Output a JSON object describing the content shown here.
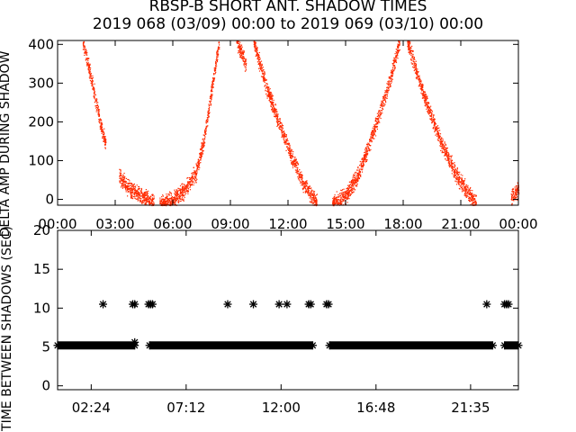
{
  "figure": {
    "title": "RBSP-B SHORT ANT. SHADOW TIMES",
    "subtitle": "2019 068 (03/09) 00:00 to 2019 069 (03/10) 00:00"
  },
  "chart_data": [
    {
      "type": "scatter",
      "name": "top-panel",
      "ylabel": "DELTA AMP DURING SHADOW",
      "xlim": [
        0,
        24
      ],
      "ylim": [
        -15,
        410
      ],
      "xticks": [
        "00:00",
        "03:00",
        "06:00",
        "09:00",
        "12:00",
        "15:00",
        "18:00",
        "21:00",
        "00:00"
      ],
      "xtick_hours": [
        0,
        3,
        6,
        9,
        12,
        15,
        18,
        21,
        24
      ],
      "yticks": [
        0,
        100,
        200,
        300,
        400
      ],
      "color": "#ff2a00",
      "marker": "dot",
      "envelopes": [
        {
          "x0": 1.3,
          "x1": 2.5,
          "x": [
            1.3,
            1.8,
            2.2,
            2.5
          ],
          "y": [
            410,
            300,
            200,
            140
          ]
        },
        {
          "x0": 3.2,
          "x1": 5.0,
          "x": [
            3.2,
            3.6,
            4.2,
            4.7,
            5.0
          ],
          "y": [
            60,
            35,
            15,
            3,
            -10
          ]
        },
        {
          "x0": 5.3,
          "x1": 8.4,
          "x": [
            5.3,
            6.0,
            6.6,
            7.2,
            7.6,
            8.0,
            8.4
          ],
          "y": [
            -10,
            0,
            25,
            70,
            150,
            280,
            410
          ]
        },
        {
          "x0": 9.3,
          "x1": 9.8,
          "x": [
            9.3,
            9.8
          ],
          "y": [
            410,
            350
          ]
        },
        {
          "x0": 10.2,
          "x1": 13.5,
          "x": [
            10.2,
            10.8,
            11.5,
            12.2,
            12.8,
            13.5
          ],
          "y": [
            410,
            300,
            200,
            110,
            40,
            -10
          ]
        },
        {
          "x0": 14.3,
          "x1": 17.8,
          "x": [
            14.3,
            15.0,
            15.6,
            16.2,
            16.8,
            17.3,
            17.8
          ],
          "y": [
            -10,
            10,
            60,
            140,
            230,
            310,
            410
          ]
        },
        {
          "x0": 18.2,
          "x1": 21.8,
          "x": [
            18.2,
            18.8,
            19.4,
            20.1,
            20.8,
            21.3,
            21.8
          ],
          "y": [
            410,
            310,
            220,
            130,
            60,
            20,
            -10
          ]
        },
        {
          "x0": 23.6,
          "x1": 24.0,
          "x": [
            23.6,
            24.0
          ],
          "y": [
            5,
            30
          ]
        }
      ]
    },
    {
      "type": "scatter",
      "name": "bottom-panel",
      "ylabel": "TIME BETWEEN SHADOWS (SEC)",
      "xlim": [
        0.7,
        24.0
      ],
      "ylim": [
        -0.5,
        20
      ],
      "xticks": [
        "02:24",
        "07:12",
        "12:00",
        "16:48",
        "21:35"
      ],
      "xtick_hours": [
        2.4,
        7.2,
        12.0,
        16.8,
        21.583
      ],
      "yticks": [
        0,
        5,
        10,
        15,
        20
      ],
      "color": "#000000",
      "marker": "asterisk",
      "baseline_value": 5.2,
      "baseline_gaps": [
        [
          4.6,
          5.35
        ],
        [
          13.6,
          14.45
        ],
        [
          22.7,
          23.3
        ]
      ],
      "points": [
        {
          "x": 3.0,
          "y": 10.5
        },
        {
          "x": 4.5,
          "y": 10.5
        },
        {
          "x": 4.6,
          "y": 10.5
        },
        {
          "x": 4.6,
          "y": 5.6
        },
        {
          "x": 5.3,
          "y": 10.5
        },
        {
          "x": 5.4,
          "y": 10.5
        },
        {
          "x": 5.5,
          "y": 10.5
        },
        {
          "x": 9.3,
          "y": 10.5
        },
        {
          "x": 10.6,
          "y": 10.5
        },
        {
          "x": 11.9,
          "y": 10.5
        },
        {
          "x": 12.3,
          "y": 10.5
        },
        {
          "x": 13.4,
          "y": 10.5
        },
        {
          "x": 13.5,
          "y": 10.5
        },
        {
          "x": 14.3,
          "y": 10.5
        },
        {
          "x": 14.4,
          "y": 10.5
        },
        {
          "x": 22.4,
          "y": 10.5
        },
        {
          "x": 23.3,
          "y": 10.5
        },
        {
          "x": 23.4,
          "y": 10.5
        },
        {
          "x": 23.5,
          "y": 10.5
        }
      ]
    }
  ]
}
